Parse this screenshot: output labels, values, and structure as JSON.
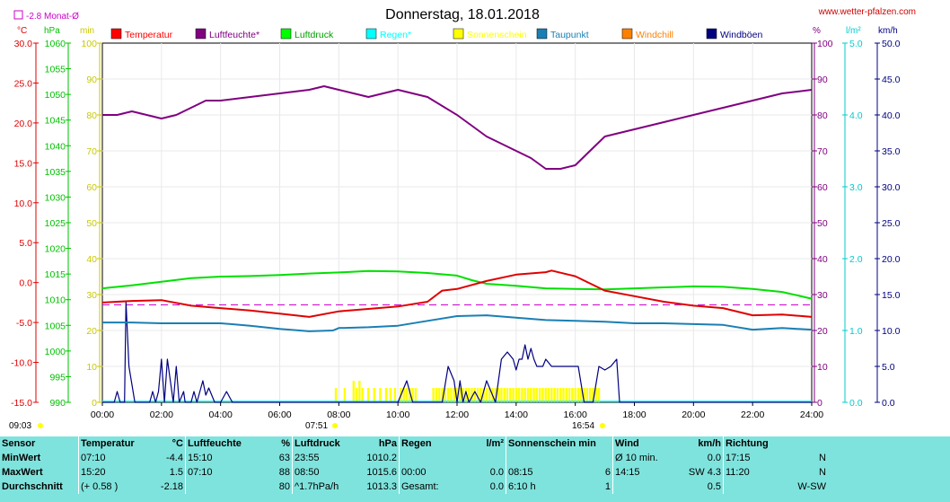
{
  "header": {
    "title": "Donnerstag, 18.01.2018",
    "site": "www.wetter-pfalzen.com",
    "avg_month": "-2.8 Monat-Ø",
    "unit_c": "°C",
    "unit_hpa": "hPa",
    "unit_min": "min",
    "unit_pct": "%",
    "unit_lm2": "l/m²",
    "unit_kmh": "km/h"
  },
  "legend": [
    {
      "label": "Temperatur",
      "color": "#ff0000"
    },
    {
      "label": "Luftfeuchte*",
      "color": "#800080"
    },
    {
      "label": "Luftdruck",
      "color": "#00ff00"
    },
    {
      "label": "Regen*",
      "color": "#00ffff"
    },
    {
      "label": "Sonnenschein",
      "color": "#ffff00"
    },
    {
      "label": "Taupunkt",
      "color": "#1a7fb4"
    },
    {
      "label": "Windchill",
      "color": "#ff8000"
    },
    {
      "label": "Windböen",
      "color": "#000080"
    }
  ],
  "colors": {
    "temperature": "#e00000",
    "humidity": "#800080",
    "pressure": "#00e000",
    "rain": "#00ffff",
    "sunshine": "#ffff00",
    "dewpoint": "#1a7fb4",
    "gust": "#000080",
    "monthly_avg": "#cc00cc",
    "table_bg": "#7fe3dd"
  },
  "markers": {
    "chart_start": "09:03",
    "sunrise": "07:51",
    "sunset": "16:54"
  },
  "chart_data": {
    "type": "line",
    "title": "Donnerstag, 18.01.2018",
    "x_ticks": [
      "00:00",
      "02:00",
      "04:00",
      "06:00",
      "08:00",
      "10:00",
      "12:00",
      "14:00",
      "16:00",
      "18:00",
      "20:00",
      "22:00",
      "24:00"
    ],
    "axes": {
      "temperature_c": {
        "range": [
          -15,
          30
        ],
        "ticks": [
          "30.0",
          "25.0",
          "20.0",
          "15.0",
          "10.0",
          "5.0",
          "0.0",
          "-5.0",
          "-10.0",
          "-15.0"
        ]
      },
      "pressure_hpa": {
        "range": [
          990,
          1060
        ],
        "ticks": [
          "1060",
          "1055",
          "1050",
          "1045",
          "1040",
          "1035",
          "1030",
          "1025",
          "1020",
          "1015",
          "1010",
          "1005",
          "1000",
          "995",
          "990"
        ]
      },
      "sunshine_min": {
        "range": [
          0,
          100
        ],
        "ticks": [
          "100",
          "90",
          "80",
          "70",
          "60",
          "50",
          "40",
          "30",
          "20",
          "10",
          "0"
        ]
      },
      "humidity_pct": {
        "range": [
          0,
          100
        ],
        "ticks": [
          "100",
          "90",
          "80",
          "70",
          "60",
          "50",
          "40",
          "30",
          "20",
          "10",
          "0"
        ]
      },
      "rain_lm2": {
        "range": [
          0,
          5
        ],
        "ticks": [
          "5.0",
          "4.0",
          "3.0",
          "2.0",
          "1.0",
          "0.0"
        ]
      },
      "wind_kmh": {
        "range": [
          0,
          50
        ],
        "ticks": [
          "50.0",
          "45.0",
          "40.0",
          "35.0",
          "30.0",
          "25.0",
          "20.0",
          "15.0",
          "10.0",
          "5.0",
          "0.0"
        ]
      }
    },
    "monthly_avg_c": -2.8,
    "series": [
      {
        "name": "Temperatur",
        "axis": "temperature_c",
        "x": [
          0,
          1,
          2,
          3,
          4,
          5,
          6,
          7,
          8,
          9,
          10,
          11,
          11.5,
          12,
          13,
          14,
          15,
          15.2,
          16,
          17,
          18,
          19,
          20,
          21,
          22,
          23,
          24
        ],
        "y": [
          -2.5,
          -2.3,
          -2.2,
          -2.9,
          -3.2,
          -3.5,
          -3.9,
          -4.3,
          -3.6,
          -3.3,
          -3.0,
          -2.4,
          -1.0,
          -0.8,
          0.2,
          1.0,
          1.3,
          1.5,
          0.8,
          -1.0,
          -1.7,
          -2.4,
          -2.9,
          -3.2,
          -4.1,
          -4.0,
          -4.3
        ]
      },
      {
        "name": "Luftfeuchte*",
        "axis": "humidity_pct",
        "x": [
          0,
          0.5,
          1,
          1.5,
          2,
          2.5,
          3,
          3.5,
          4,
          5,
          6,
          7,
          7.5,
          8,
          8.5,
          9,
          9.5,
          10,
          10.5,
          11,
          12,
          12.5,
          13,
          13.5,
          14,
          14.5,
          15,
          15.5,
          16,
          16.5,
          17,
          17.5,
          18,
          19,
          20,
          21,
          22,
          23,
          24
        ],
        "y": [
          80,
          80,
          81,
          80,
          79,
          80,
          82,
          84,
          84,
          85,
          86,
          87,
          88,
          87,
          86,
          85,
          86,
          87,
          86,
          85,
          80,
          77,
          74,
          72,
          70,
          68,
          65,
          65,
          66,
          70,
          74,
          75,
          76,
          78,
          80,
          82,
          84,
          86,
          87
        ]
      },
      {
        "name": "Luftdruck",
        "axis": "pressure_hpa",
        "x": [
          0,
          1,
          2,
          3,
          4,
          5,
          6,
          7,
          8,
          9,
          10,
          11,
          12,
          12.5,
          13,
          14,
          15,
          16,
          17,
          18,
          19,
          20,
          21,
          22,
          23,
          24
        ],
        "y": [
          1012.2,
          1012.8,
          1013.5,
          1014.2,
          1014.5,
          1014.6,
          1014.8,
          1015.1,
          1015.3,
          1015.6,
          1015.5,
          1015.2,
          1014.7,
          1013.8,
          1013.1,
          1012.7,
          1012.2,
          1012.1,
          1012.0,
          1012.2,
          1012.4,
          1012.6,
          1012.5,
          1012.1,
          1011.5,
          1010.2
        ]
      },
      {
        "name": "Taupunkt",
        "axis": "temperature_c",
        "x": [
          0,
          1,
          2,
          3,
          4,
          5,
          6,
          7,
          7.8,
          8,
          9,
          10,
          11,
          12,
          13,
          14,
          15,
          16,
          17,
          18,
          19,
          20,
          21,
          22,
          23,
          24
        ],
        "y": [
          -5.0,
          -5.0,
          -5.1,
          -5.1,
          -5.1,
          -5.4,
          -5.8,
          -6.1,
          -6.0,
          -5.7,
          -5.6,
          -5.4,
          -4.8,
          -4.2,
          -4.1,
          -4.4,
          -4.7,
          -4.8,
          -4.9,
          -5.1,
          -5.1,
          -5.2,
          -5.3,
          -5.9,
          -5.7,
          -5.9
        ]
      },
      {
        "name": "Windböen",
        "axis": "wind_kmh",
        "x": [
          0,
          0.4,
          0.5,
          0.6,
          0.75,
          0.8,
          0.9,
          1.1,
          1.2,
          1.5,
          1.6,
          1.7,
          1.8,
          1.9,
          2.0,
          2.1,
          2.2,
          2.3,
          2.4,
          2.5,
          2.6,
          2.75,
          2.8,
          3.0,
          3.1,
          3.2,
          3.3,
          3.4,
          3.5,
          3.6,
          3.7,
          3.8,
          3.9,
          4.0,
          4.2,
          4.4,
          4.5,
          4.7,
          4.8,
          5,
          6,
          7,
          8,
          8.2,
          8.4,
          8.6,
          8.8,
          9,
          10,
          10.3,
          10.5,
          10.7,
          11,
          11.5,
          11.7,
          11.9,
          12.0,
          12.1,
          12.2,
          12.3,
          12.4,
          12.6,
          12.8,
          13,
          13.3,
          13.5,
          13.7,
          13.9,
          14.0,
          14.1,
          14.2,
          14.3,
          14.4,
          14.5,
          14.6,
          14.7,
          14.8,
          14.9,
          15.0,
          15.2,
          15.4,
          15.6,
          15.8,
          16.0,
          16.1,
          16.3,
          16.4,
          16.6,
          16.8,
          17.0,
          17.2,
          17.4,
          17.5,
          18,
          24
        ],
        "y": [
          0,
          0,
          1.5,
          0,
          0,
          14,
          5,
          0,
          0,
          0,
          0,
          1.5,
          0,
          1.5,
          6,
          0,
          6,
          3,
          0,
          5,
          0,
          1.5,
          0,
          0,
          1.5,
          0,
          1.5,
          3,
          1,
          2,
          1,
          0,
          0,
          0,
          1.5,
          0,
          0,
          0,
          0,
          0,
          0,
          0,
          0,
          0,
          0,
          0,
          0,
          0,
          0,
          3,
          0,
          0,
          0,
          0,
          5,
          3,
          0,
          3,
          0,
          1.5,
          0,
          1.5,
          0,
          3,
          0,
          6,
          7,
          6,
          4.5,
          6,
          6,
          8,
          6,
          7.5,
          6,
          5,
          5,
          5,
          6,
          5,
          5,
          5,
          5,
          5,
          5,
          0,
          0,
          0,
          5,
          4.5,
          5,
          6,
          0,
          0,
          0
        ]
      },
      {
        "name": "Sonnenschein",
        "axis": "sunshine_min",
        "type": "bar",
        "x": [
          7.9,
          8.2,
          8.5,
          8.6,
          8.7,
          8.8,
          9.0,
          9.2,
          9.4,
          9.6,
          9.75,
          9.9,
          10.1,
          10.2,
          10.3,
          10.4,
          10.5,
          10.6,
          11.2,
          11.3,
          11.4,
          11.5,
          11.6,
          11.7,
          11.8,
          11.9,
          12.0,
          12.1,
          12.2,
          12.3,
          12.4,
          12.5,
          12.6,
          12.7,
          12.8,
          12.9,
          13.0,
          13.1,
          13.2,
          13.3,
          13.4,
          13.5,
          13.6,
          13.7,
          13.8,
          13.9,
          14.0,
          14.1,
          14.2,
          14.3,
          14.4,
          14.5,
          14.6,
          14.7,
          14.8,
          14.9,
          15.0,
          15.1,
          15.2,
          15.3,
          15.4,
          15.5,
          15.6,
          15.7,
          15.8,
          15.9,
          16.0,
          16.1,
          16.2,
          16.3,
          16.4,
          16.5,
          16.6,
          16.7,
          16.8
        ],
        "y": [
          4,
          4,
          6,
          4,
          6,
          4,
          4,
          4,
          4,
          4,
          4,
          4,
          4,
          4,
          4,
          4,
          4,
          4,
          4,
          4,
          4,
          4,
          4,
          4,
          4,
          4,
          4,
          4,
          4,
          4,
          4,
          4,
          4,
          4,
          4,
          4,
          4,
          4,
          4,
          4,
          4,
          4,
          4,
          4,
          4,
          4,
          4,
          4,
          4,
          4,
          4,
          4,
          4,
          4,
          4,
          4,
          4,
          4,
          4,
          4,
          4,
          4,
          4,
          4,
          4,
          4,
          4,
          4,
          4,
          4,
          4,
          4,
          4,
          4,
          4
        ]
      }
    ]
  },
  "stats": {
    "headers": {
      "sensor": "Sensor",
      "temperatur": "Temperatur",
      "temp_unit": "°C",
      "luftfeuchte": "Luftfeuchte",
      "hum_unit": "%",
      "luftdruck": "Luftdruck",
      "press_unit": "hPa",
      "regen": "Regen",
      "rain_unit": "l/m²",
      "sonne": "Sonnenschein min",
      "wind": "Wind",
      "wind_unit": "km/h",
      "richtung": "Richtung"
    },
    "rows": [
      {
        "label": "MinWert",
        "temp_time": "07:10",
        "temp_val": "-4.4",
        "hum_time": "15:10",
        "hum_val": "63",
        "press_time": "23:55",
        "press_val": "1010.2",
        "rain_time": "",
        "rain_val": "",
        "sun_time": "",
        "sun_val": "",
        "wind_time": "Ø 10 min.",
        "wind_val": "0.0",
        "dir_time": "17:15",
        "dir_val": "N"
      },
      {
        "label": "MaxWert",
        "temp_time": "15:20",
        "temp_val": "1.5",
        "hum_time": "07:10",
        "hum_val": "88",
        "press_time": "08:50",
        "press_val": "1015.6",
        "rain_time": "00:00",
        "rain_val": "0.0",
        "sun_time": "08:15",
        "sun_val": "6",
        "wind_time": "14:15",
        "wind_val": "SW 4.3",
        "dir_time": "11:20",
        "dir_val": "N"
      },
      {
        "label": "Durchschnitt",
        "temp_time": "(+ 0.58 )",
        "temp_val": "-2.18",
        "hum_time": "",
        "hum_val": "80",
        "press_time": "^1.7hPa/h",
        "press_val": "1013.3",
        "rain_time": "Gesamt:",
        "rain_val": "0.0",
        "sun_time": "6:10 h",
        "sun_val": "1",
        "wind_time": "",
        "wind_val": "0.5",
        "dir_time": "",
        "dir_val": "W-SW"
      }
    ]
  }
}
